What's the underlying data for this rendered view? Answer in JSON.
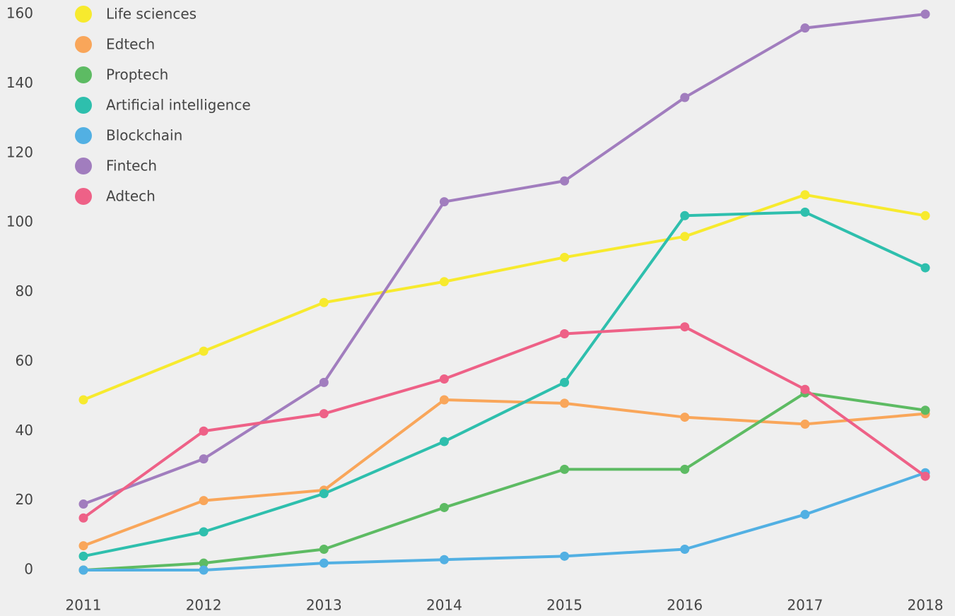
{
  "chart_data": {
    "type": "line",
    "x": [
      "2011",
      "2012",
      "2013",
      "2014",
      "2015",
      "2016",
      "2017",
      "2018"
    ],
    "series": [
      {
        "name": "Life sciences",
        "color": "#f7ea2e",
        "values": [
          49,
          63,
          77,
          83,
          90,
          96,
          108,
          102
        ]
      },
      {
        "name": "Edtech",
        "color": "#f9a65a",
        "values": [
          7,
          20,
          23,
          49,
          48,
          44,
          42,
          45
        ]
      },
      {
        "name": "Proptech",
        "color": "#5dbb63",
        "values": [
          0,
          2,
          6,
          18,
          29,
          29,
          51,
          46
        ]
      },
      {
        "name": "Artificial intelligence",
        "color": "#2ebfad",
        "values": [
          4,
          11,
          22,
          37,
          54,
          102,
          103,
          87
        ]
      },
      {
        "name": "Blockchain",
        "color": "#52b0e3",
        "values": [
          0,
          0,
          2,
          3,
          4,
          6,
          16,
          28
        ]
      },
      {
        "name": "Fintech",
        "color": "#a17dbe",
        "values": [
          19,
          32,
          54,
          106,
          112,
          136,
          156,
          160
        ]
      },
      {
        "name": "Adtech",
        "color": "#ee6187",
        "values": [
          15,
          40,
          45,
          55,
          68,
          70,
          52,
          27
        ]
      }
    ],
    "ylim": [
      0,
      160
    ],
    "yticks": [
      0,
      20,
      40,
      60,
      80,
      100,
      120,
      140,
      160
    ],
    "grid": false,
    "legend": "top-left"
  }
}
